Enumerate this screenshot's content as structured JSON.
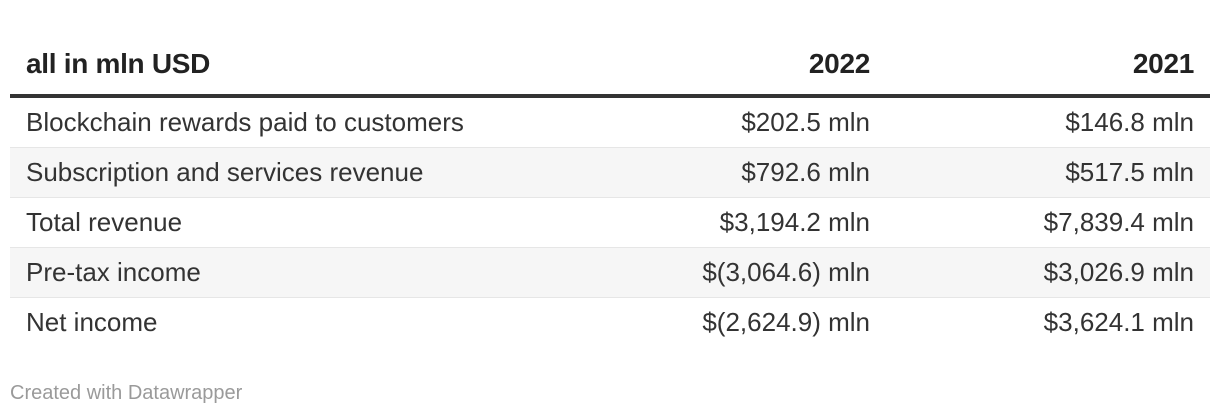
{
  "table": {
    "headers": [
      "all in mln USD",
      "2022",
      "2021"
    ],
    "rows": [
      [
        "Blockchain rewards paid to customers",
        "$202.5 mln",
        "$146.8 mln"
      ],
      [
        "Subscription and services revenue",
        "$792.6 mln",
        "$517.5 mln"
      ],
      [
        "Total revenue",
        "$3,194.2 mln",
        "$7,839.4 mln"
      ],
      [
        "Pre-tax income",
        "$(3,064.6) mln",
        "$3,026.9 mln"
      ],
      [
        "Net income",
        "$(2,624.9) mln",
        "$3,624.1 mln"
      ]
    ]
  },
  "footer": {
    "credit": "Created with Datawrapper"
  }
}
